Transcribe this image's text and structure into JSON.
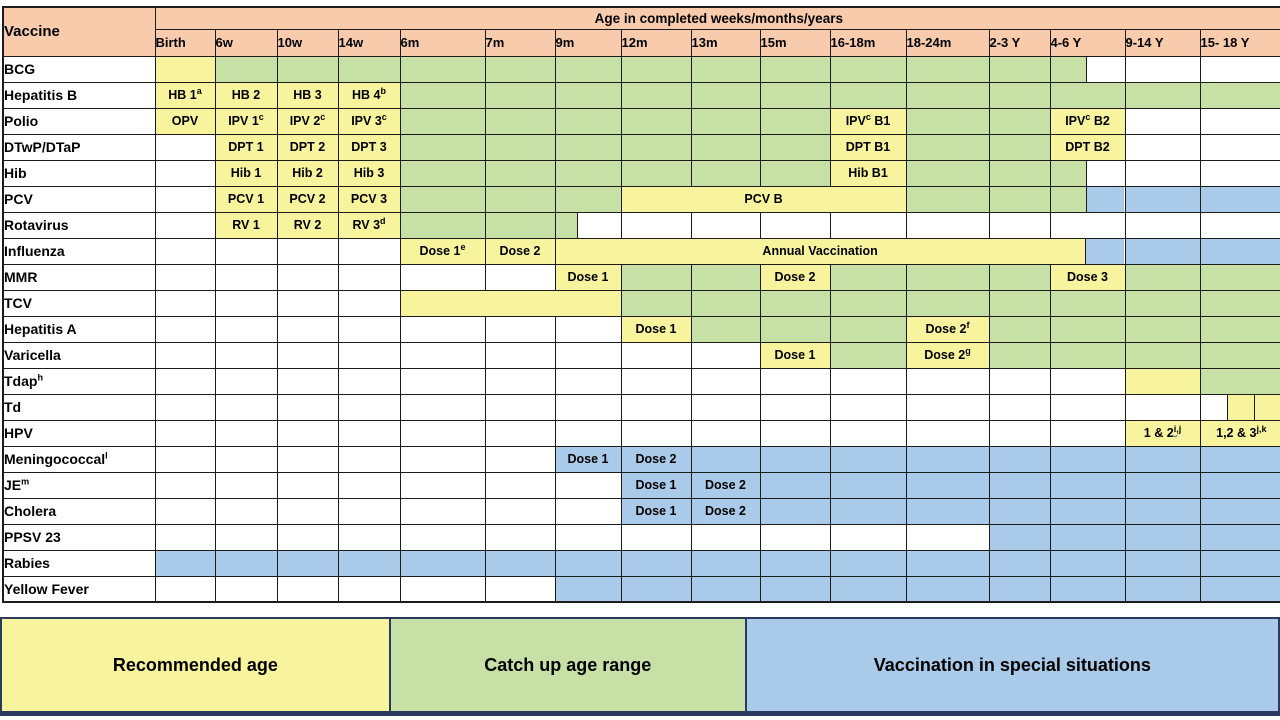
{
  "colors": {
    "recommended_yellow": "#F7F49D",
    "catchup_green": "#C6E0A5",
    "special_blue": "#A9CBE9",
    "header_peach": "#F8CBAD",
    "grid": "#1C1C1C",
    "legend_border": "#2A3A5E",
    "squiggle_blue": "#3B6FD4"
  },
  "chart_data": {
    "type": "table",
    "corner_label": "Vaccine",
    "age_header": "Age in completed weeks/months/years",
    "columns": [
      "Birth",
      "6w",
      "10w",
      "14w",
      "6m",
      "7m",
      "9m",
      "12m",
      "13m",
      "15m",
      "16-18m",
      "18-24m",
      "2-3 Y",
      "4-6 Y",
      "9-14 Y",
      "15- 18 Y"
    ],
    "rows": [
      {
        "vaccine": "BCG",
        "cells": [
          "y",
          {
            "bg": "g",
            "rep": 12
          },
          {
            "parts": [
              [
                "g",
                48
              ],
              [
                "w",
                52
              ]
            ]
          },
          "w",
          "w"
        ]
      },
      {
        "vaccine": "Hepatitis B",
        "cells": [
          {
            "bg": "y",
            "t": "HB 1^{a}"
          },
          {
            "bg": "y",
            "t": "HB 2"
          },
          {
            "bg": "y",
            "t": "HB 3"
          },
          {
            "bg": "y",
            "t": "HB 4^{b}"
          },
          {
            "bg": "g",
            "rep": 12
          }
        ]
      },
      {
        "vaccine": "Polio",
        "cells": [
          {
            "bg": "y",
            "t": "OPV"
          },
          {
            "bg": "y",
            "t": "IPV 1^{c}"
          },
          {
            "bg": "y",
            "t": "IPV 2^{c}"
          },
          {
            "bg": "y",
            "t": "IPV 3^{c}"
          },
          {
            "bg": "g",
            "rep": 6
          },
          {
            "bg": "y",
            "t": "IPV^{c} B1"
          },
          {
            "bg": "g",
            "rep": 2
          },
          {
            "bg": "y",
            "t": "IPV^{c} B2"
          },
          "w",
          "w"
        ]
      },
      {
        "vaccine": "DTwP/DTaP",
        "cells": [
          "w",
          {
            "bg": "y",
            "t": "DPT 1"
          },
          {
            "bg": "y",
            "t": "DPT 2"
          },
          {
            "bg": "y",
            "t": "DPT 3"
          },
          {
            "bg": "g",
            "rep": 6
          },
          {
            "bg": "y",
            "t": "DPT B1"
          },
          {
            "bg": "g",
            "rep": 2
          },
          {
            "bg": "y",
            "t": "DPT B2"
          },
          "w",
          "w"
        ]
      },
      {
        "vaccine": "Hib",
        "cells": [
          "w",
          {
            "bg": "y",
            "t": "Hib 1"
          },
          {
            "bg": "y",
            "t": "Hib 2"
          },
          {
            "bg": "y",
            "t": "Hib 3"
          },
          {
            "bg": "g",
            "rep": 6
          },
          {
            "bg": "y",
            "t": "Hib B1"
          },
          {
            "bg": "g",
            "rep": 2
          },
          {
            "parts": [
              [
                "g",
                48
              ],
              [
                "w",
                52
              ]
            ]
          },
          "w",
          "w"
        ]
      },
      {
        "vaccine": "PCV",
        "cells": [
          "w",
          {
            "bg": "y",
            "t": "PCV 1"
          },
          {
            "bg": "y",
            "t": "PCV 2"
          },
          {
            "bg": "y",
            "t": "PCV 3"
          },
          {
            "bg": "g",
            "rep": 3
          },
          {
            "bg": "y",
            "t": "PCV B",
            "span": 4
          },
          {
            "bg": "g",
            "rep": 2
          },
          {
            "parts": [
              [
                "g",
                48
              ],
              [
                "b",
                52
              ]
            ]
          },
          "b",
          "b"
        ]
      },
      {
        "vaccine": "Rotavirus",
        "cells": [
          "w",
          {
            "bg": "y",
            "t": "RV 1"
          },
          {
            "bg": "y",
            "t": "RV 2"
          },
          {
            "bg": "y",
            "t": "RV 3^{d}"
          },
          "g",
          "g",
          {
            "parts": [
              [
                "g",
                33
              ],
              [
                "w",
                67
              ]
            ]
          },
          {
            "bg": "w",
            "rep": 9
          }
        ]
      },
      {
        "vaccine": "Influenza",
        "cells": [
          {
            "bg": "w",
            "rep": 4
          },
          {
            "bg": "y",
            "t": "Dose 1^{e}"
          },
          {
            "bg": "y",
            "t": "Dose 2"
          },
          {
            "span": 8,
            "parts": [
              [
                "y",
                93,
                "Annual Vaccination"
              ],
              [
                "b",
                7
              ]
            ]
          },
          "b",
          "b"
        ]
      },
      {
        "vaccine": "MMR",
        "cells": [
          {
            "bg": "w",
            "rep": 6
          },
          {
            "bg": "y",
            "t": "Dose 1"
          },
          "g",
          "g",
          {
            "bg": "y",
            "t": "Dose 2"
          },
          {
            "bg": "g",
            "rep": 3
          },
          {
            "bg": "y",
            "t": "Dose 3"
          },
          "g",
          "g"
        ]
      },
      {
        "vaccine": "TCV",
        "cells": [
          {
            "bg": "w",
            "rep": 4
          },
          {
            "bg": "y",
            "span": 3
          },
          {
            "bg": "g",
            "rep": 9
          }
        ]
      },
      {
        "vaccine": "Hepatitis A",
        "cells": [
          {
            "bg": "w",
            "rep": 7
          },
          {
            "bg": "y",
            "t": "Dose 1"
          },
          {
            "bg": "g",
            "rep": 3
          },
          {
            "bg": "y",
            "t": "Dose 2^{f}"
          },
          {
            "bg": "g",
            "rep": 4
          }
        ]
      },
      {
        "vaccine": "Varicella",
        "cells": [
          {
            "bg": "w",
            "rep": 9
          },
          {
            "bg": "y",
            "t": "Dose 1"
          },
          "g",
          {
            "bg": "y",
            "t": "Dose 2^{g}"
          },
          {
            "bg": "g",
            "rep": 4
          }
        ]
      },
      {
        "vaccine": "Tdap^{h}",
        "cells": [
          {
            "bg": "w",
            "rep": 14
          },
          "y",
          "g"
        ]
      },
      {
        "vaccine": "Td",
        "cells": [
          {
            "bg": "w",
            "rep": 15
          },
          {
            "parts": [
              [
                "w",
                32
              ],
              [
                "y",
                34
              ],
              [
                "y",
                34
              ]
            ]
          }
        ]
      },
      {
        "vaccine": "HPV",
        "cells": [
          {
            "bg": "w",
            "rep": 14
          },
          {
            "bg": "y",
            "t": "1 & 2^{i,j}",
            "sq": true
          },
          {
            "bg": "y",
            "t": "1,2 & 3^{j,k}"
          }
        ]
      },
      {
        "vaccine": "Meningococcal^{l}",
        "cells": [
          {
            "bg": "w",
            "rep": 6
          },
          {
            "bg": "b",
            "t": "Dose 1"
          },
          {
            "bg": "b",
            "t": "Dose 2"
          },
          {
            "bg": "b",
            "rep": 8
          }
        ]
      },
      {
        "vaccine": "JE^{m}",
        "cells": [
          {
            "bg": "w",
            "rep": 7
          },
          {
            "bg": "b",
            "t": "Dose 1"
          },
          {
            "bg": "b",
            "t": "Dose 2"
          },
          {
            "bg": "b",
            "rep": 7
          }
        ]
      },
      {
        "vaccine": "Cholera",
        "cells": [
          {
            "bg": "w",
            "rep": 7
          },
          {
            "bg": "b",
            "t": "Dose 1"
          },
          {
            "bg": "b",
            "t": "Dose 2"
          },
          {
            "bg": "b",
            "rep": 7
          }
        ]
      },
      {
        "vaccine": "PPSV 23",
        "cells": [
          {
            "bg": "w",
            "rep": 12
          },
          {
            "bg": "b",
            "rep": 4
          }
        ]
      },
      {
        "vaccine": "Rabies",
        "cells": [
          {
            "bg": "b",
            "rep": 16
          }
        ]
      },
      {
        "vaccine": "Yellow Fever",
        "cells": [
          {
            "bg": "w",
            "rep": 6
          },
          {
            "bg": "b",
            "rep": 10
          }
        ]
      }
    ],
    "legend": [
      {
        "label": "Recommended age",
        "color_key": "recommended"
      },
      {
        "label": "Catch up age range",
        "color_key": "catchup"
      },
      {
        "label": "Vaccination in special situations",
        "color_key": "special"
      }
    ]
  }
}
